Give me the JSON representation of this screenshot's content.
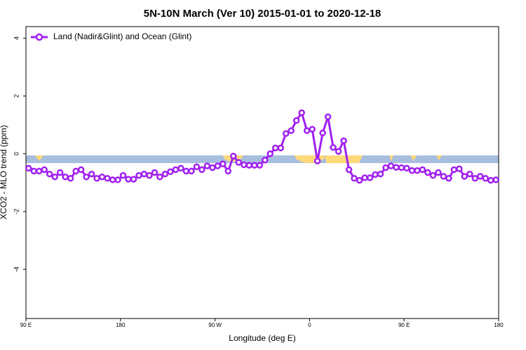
{
  "chart_data": {
    "type": "line",
    "title": "5N-10N March (Ver 10)   2015-01-01 to 2020-12-18",
    "xlabel": "Longitude (deg E)",
    "ylabel": "XCO2 - MLO trend (ppm)",
    "xlim": [
      90,
      540
    ],
    "xticks": [
      {
        "value": 90,
        "label": "90 E"
      },
      180,
      {
        "value": 270,
        "label": "90 W"
      },
      {
        "value": 360,
        "label": "0"
      },
      {
        "value": 450,
        "label": "90 E"
      },
      {
        "value": 540,
        "label": "180"
      }
    ],
    "ylim": [
      -5.7,
      4.4
    ],
    "yticks": [
      4,
      2,
      0,
      -2,
      -4
    ],
    "legend": "top-left",
    "x": [
      92.5,
      97.5,
      102.5,
      107.5,
      112.5,
      117.5,
      122.5,
      127.5,
      132.5,
      137.5,
      142.5,
      147.5,
      152.5,
      157.5,
      162.5,
      167.5,
      172.5,
      177.5,
      182.5,
      187.5,
      192.5,
      197.5,
      202.5,
      207.5,
      212.5,
      217.5,
      222.5,
      227.5,
      232.5,
      237.5,
      242.5,
      247.5,
      252.5,
      257.5,
      262.5,
      267.5,
      272.5,
      277.5,
      282.5,
      287.5,
      292.5,
      297.5,
      302.5,
      307.5,
      312.5,
      317.5,
      322.5,
      327.5,
      332.5,
      337.5,
      342.5,
      347.5,
      352.5,
      357.5,
      362.5,
      367.5,
      372.5,
      377.5,
      382.5,
      387.5,
      392.5,
      397.5,
      402.5,
      407.5,
      412.5,
      417.5,
      422.5,
      427.5,
      432.5,
      437.5,
      442.5,
      447.5,
      452.5,
      457.5,
      462.5,
      467.5,
      472.5,
      477.5,
      482.5,
      487.5,
      492.5,
      497.5,
      502.5,
      507.5,
      512.5,
      517.5,
      522.5,
      527.5,
      532.5,
      537.5
    ],
    "series": [
      {
        "name": "Land (Nadir&Glint) and Ocean (Glint)",
        "color": "#a020f0",
        "values": [
          -0.5,
          -0.6,
          -0.6,
          -0.55,
          -0.7,
          -0.8,
          -0.65,
          -0.8,
          -0.85,
          -0.6,
          -0.55,
          -0.8,
          -0.7,
          -0.85,
          -0.8,
          -0.85,
          -0.9,
          -0.9,
          -0.75,
          -0.88,
          -0.88,
          -0.75,
          -0.7,
          -0.75,
          -0.65,
          -0.8,
          -0.7,
          -0.62,
          -0.55,
          -0.5,
          -0.6,
          -0.6,
          -0.45,
          -0.55,
          -0.42,
          -0.48,
          -0.42,
          -0.35,
          -0.6,
          -0.08,
          -0.3,
          -0.38,
          -0.4,
          -0.4,
          -0.4,
          -0.22,
          0.0,
          0.2,
          0.2,
          0.7,
          0.8,
          1.15,
          1.42,
          0.8,
          0.85,
          -0.25,
          0.72,
          1.28,
          0.22,
          0.08,
          0.45,
          -0.55,
          -0.85,
          -0.92,
          -0.83,
          -0.83,
          -0.72,
          -0.7,
          -0.48,
          -0.42,
          -0.47,
          -0.48,
          -0.5,
          -0.58,
          -0.58,
          -0.55,
          -0.65,
          -0.75,
          -0.65,
          -0.78,
          -0.85,
          -0.55,
          -0.52,
          -0.78,
          -0.7,
          -0.85,
          -0.78,
          -0.85,
          -0.92,
          -0.9
        ]
      }
    ]
  }
}
